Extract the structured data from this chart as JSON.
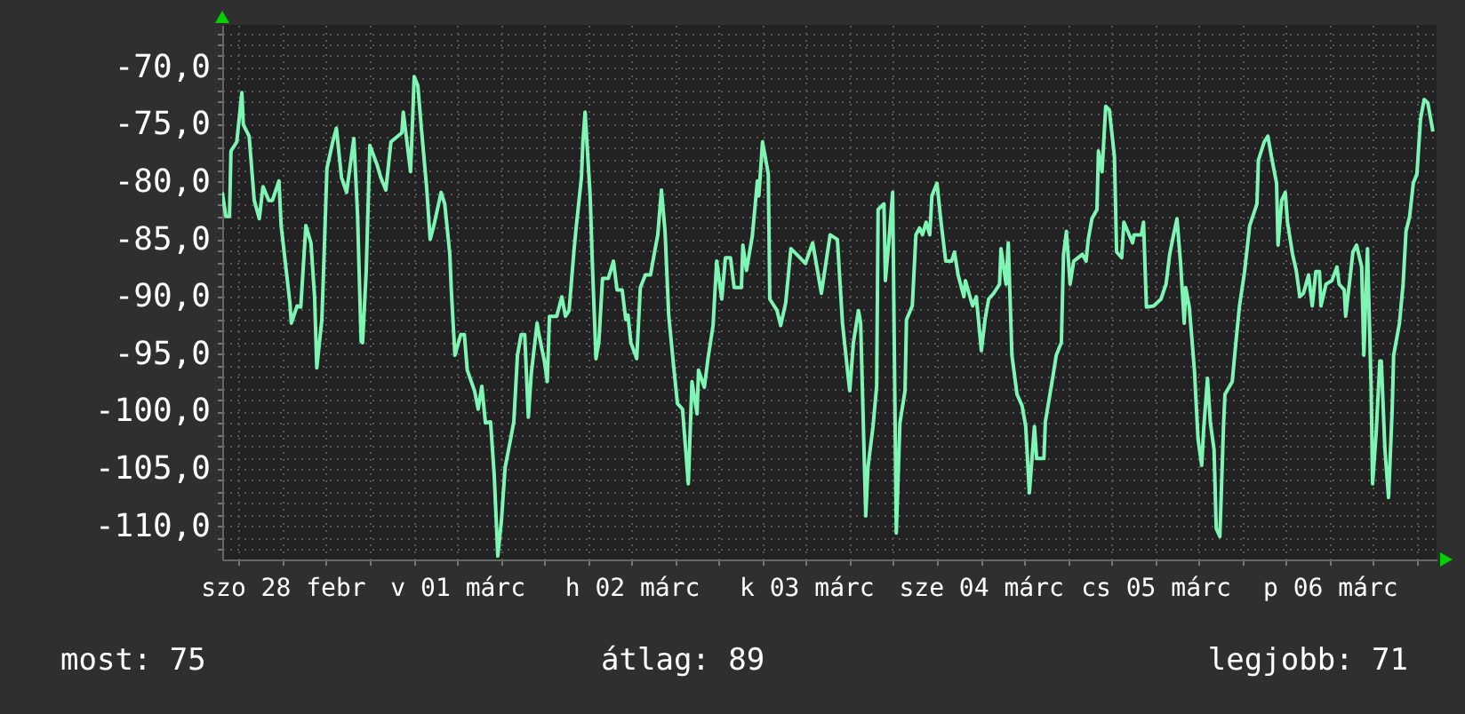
{
  "chart_data": {
    "type": "line",
    "x": [
      "--02-28T03:42",
      "--02-28T04:12",
      "--02-28T04:42",
      "--02-28T04:54",
      "--02-28T05:42",
      "--02-28T06:24",
      "--02-28T06:36",
      "--02-28T07:24",
      "--02-28T08:06",
      "--02-28T08:48",
      "--02-28T09:18",
      "--02-28T10:06",
      "--02-28T10:36",
      "--02-28T11:30",
      "--02-28T11:48",
      "--02-28T13:00",
      "--02-28T13:12",
      "--02-28T14:00",
      "--02-28T14:30",
      "--02-28T15:12",
      "--02-28T15:54",
      "--02-28T16:24",
      "--02-28T16:42",
      "--02-28T17:24",
      "--02-28T17:36",
      "--02-28T18:06",
      "--02-28T18:54",
      "--02-28T19:24",
      "--02-28T20:06",
      "--02-28T20:48",
      "--02-28T21:48",
      "--02-28T22:18",
      "--02-28T22:48",
      "--02-28T23:00",
      "--02-28T23:30",
      "--03-01T00:00",
      "--03-01T01:00",
      "--03-01T01:30",
      "--03-01T02:12",
      "--03-01T02:54",
      "--03-01T04:24",
      "--03-01T04:36",
      "--03-01T05:36",
      "--03-01T05:54",
      "--03-01T06:06",
      "--03-01T06:36",
      "--03-01T07:06",
      "--03-01T07:48",
      "--03-01T08:18",
      "--03-01T08:48",
      "--03-01T09:48",
      "--03-01T10:18",
      "--03-01T11:00",
      "--03-01T11:12",
      "--03-01T11:42",
      "--03-01T12:30",
      "--03-01T13:00",
      "--03-01T13:24",
      "--03-01T14:24",
      "--03-01T14:54",
      "--03-01T15:24",
      "--03-01T15:54",
      "--03-01T16:36",
      "--03-01T17:06",
      "--03-01T17:36",
      "--03-01T18:06",
      "--03-01T18:36",
      "--03-01T19:18",
      "--03-01T19:48",
      "--03-01T20:18",
      "--03-01T20:48",
      "--03-01T21:18",
      "--03-01T21:48",
      "--03-01T22:12",
      "--03-01T23:00",
      "--03-01T23:12",
      "--03-02T00:00",
      "--03-02T00:24",
      "--03-02T00:42",
      "--03-02T01:42",
      "--03-02T02:24",
      "--03-02T02:54",
      "--03-02T03:24",
      "--03-02T04:06",
      "--03-02T04:24",
      "--03-02T05:06",
      "--03-02T05:18",
      "--03-02T05:36",
      "--03-02T06:18",
      "--03-02T06:36",
      "--03-02T07:06",
      "--03-02T07:30",
      "--03-02T08:00",
      "--03-02T08:48",
      "--03-02T09:30",
      "--03-02T10:00",
      "--03-02T10:42",
      "--03-02T11:12",
      "--03-02T11:30",
      "--03-02T11:54",
      "--03-02T12:42",
      "--03-02T13:12",
      "--03-02T13:54",
      "--03-02T14:36",
      "--03-02T15:06",
      "--03-02T15:36",
      "--03-02T16:06",
      "--03-02T16:36",
      "--03-02T17:06",
      "--03-02T17:48",
      "--03-02T18:18",
      "--03-02T19:00",
      "--03-02T19:48",
      "--03-02T20:18",
      "--03-02T21:00",
      "--03-02T21:12",
      "--03-02T22:00",
      "--03-02T22:30",
      "--03-02T23:12",
      "--03-02T23:42",
      "--03-03T00:24",
      "--03-03T00:54",
      "--03-03T01:36",
      "--03-03T02:06",
      "--03-03T03:06",
      "--03-03T03:18",
      "--03-03T03:48",
      "--03-03T04:36",
      "--03-03T05:18",
      "--03-03T05:30",
      "--03-03T06:00",
      "--03-03T06:48",
      "--03-03T07:00",
      "--03-03T08:00",
      "--03-03T08:30",
      "--03-03T09:12",
      "--03-03T09:54",
      "--03-03T10:42",
      "--03-03T11:54",
      "--03-03T12:54",
      "--03-03T14:06",
      "--03-03T15:18",
      "--03-03T16:18",
      "--03-03T17:00",
      "--03-03T17:48",
      "--03-03T18:00",
      "--03-03T18:30",
      "--03-03T19:12",
      "--03-03T19:30",
      "--03-03T20:12",
      "--03-03T20:30",
      "--03-03T21:12",
      "--03-03T21:42",
      "--03-03T21:54",
      "--03-03T22:42",
      "--03-03T22:54",
      "--03-03T23:24",
      "--03-03T23:54",
      "--03-04T00:24",
      "--03-04T00:54",
      "--03-04T01:36",
      "--03-04T01:48",
      "--03-04T02:36",
      "--03-04T03:06",
      "--03-04T03:36",
      "--03-04T04:00",
      "--03-04T04:30",
      "--03-04T05:00",
      "--03-04T05:18",
      "--03-04T06:00",
      "--03-04T06:30",
      "--03-04T07:12",
      "--03-04T08:00",
      "--03-04T08:24",
      "--03-04T08:54",
      "--03-04T09:42",
      "--03-04T09:54",
      "--03-04T10:54",
      "--03-04T11:24",
      "--03-04T12:06",
      "--03-04T12:36",
      "--03-04T13:06",
      "--03-04T13:48",
      "--03-04T14:36",
      "--03-04T14:48",
      "--03-04T15:30",
      "--03-04T15:48",
      "--03-04T16:18",
      "--03-04T17:00",
      "--03-04T17:42",
      "--03-04T18:12",
      "--03-04T18:42",
      "--03-04T19:24",
      "--03-04T19:42",
      "--03-04T20:42",
      "--03-04T20:54",
      "--03-04T21:54",
      "--03-04T22:24",
      "--03-04T23:06",
      "--03-04T23:24",
      "--03-04T23:48",
      "--03-05T00:18",
      "--03-05T00:48",
      "--03-05T02:00",
      "--03-05T02:30",
      "--03-05T02:48",
      "--03-05T03:18",
      "--03-05T04:00",
      "--03-05T04:12",
      "--03-05T04:42",
      "--03-05T05:12",
      "--03-05T05:42",
      "--03-05T06:24",
      "--03-05T06:42",
      "--03-05T07:24",
      "--03-05T07:42",
      "--03-05T08:54",
      "--03-05T09:06",
      "--03-05T10:06",
      "--03-05T10:24",
      "--03-05T10:48",
      "--03-05T11:48",
      "--03-05T12:48",
      "--03-05T13:30",
      "--03-05T14:00",
      "--03-05T14:30",
      "--03-05T15:00",
      "--03-05T15:30",
      "--03-05T16:00",
      "--03-05T16:12",
      "--03-05T16:42",
      "--03-05T17:24",
      "--03-05T17:54",
      "--03-05T18:24",
      "--03-05T18:42",
      "--03-05T19:12",
      "--03-05T19:36",
      "--03-05T20:06",
      "--03-05T20:24",
      "--03-05T20:54",
      "--03-05T21:24",
      "--03-05T21:36",
      "--03-05T22:36",
      "--03-05T23:06",
      "--03-05T23:36",
      "--03-06T00:18",
      "--03-06T01:00",
      "--03-06T02:00",
      "--03-06T02:12",
      "--03-06T03:00",
      "--03-06T03:30",
      "--03-06T04:00",
      "--03-06T04:42",
      "--03-06T04:54",
      "--03-06T05:24",
      "--03-06T05:54",
      "--03-06T06:12",
      "--03-06T06:54",
      "--03-06T07:24",
      "--03-06T07:54",
      "--03-06T08:24",
      "--03-06T09:06",
      "--03-06T09:36",
      "--03-06T10:06",
      "--03-06T10:36",
      "--03-06T10:48",
      "--03-06T11:30",
      "--03-06T12:18",
      "--03-06T13:00",
      "--03-06T13:18",
      "--03-06T14:00",
      "--03-06T14:12",
      "--03-06T14:42",
      "--03-06T15:12",
      "--03-06T15:42",
      "--03-06T16:24",
      "--03-06T16:42",
      "--03-06T17:12",
      "--03-06T17:42",
      "--03-06T17:54",
      "--03-06T18:24",
      "--03-06T18:54",
      "--03-06T19:06",
      "--03-06T19:36",
      "--03-06T20:06",
      "--03-06T20:36",
      "--03-06T20:48",
      "--03-06T21:36",
      "--03-06T22:06",
      "--03-06T22:30",
      "--03-06T23:00",
      "--03-06T23:30",
      "--03-07T00:00",
      "--03-07T00:30",
      "--03-07T01:00",
      "--03-07T01:30",
      "--03-07T02:12"
    ],
    "series": [
      {
        "color": "#7ff5b5",
        "values": [
          -80.9,
          -83.0,
          -83.0,
          -77.3,
          -76.5,
          -72.2,
          -75.0,
          -76.0,
          -81.6,
          -83.2,
          -80.4,
          -81.6,
          -81.6,
          -79.9,
          -83.8,
          -90.5,
          -92.3,
          -90.8,
          -90.9,
          -83.8,
          -85.3,
          -90.0,
          -96.2,
          -92.0,
          -88.4,
          -78.8,
          -76.5,
          -75.3,
          -79.6,
          -80.9,
          -76.2,
          -82.7,
          -93.9,
          -94.0,
          -87.8,
          -76.8,
          -78.5,
          -79.6,
          -80.7,
          -76.5,
          -75.7,
          -73.9,
          -79.1,
          -74.2,
          -70.8,
          -71.6,
          -75.4,
          -80.4,
          -85.0,
          -83.8,
          -80.9,
          -81.9,
          -86.3,
          -89.4,
          -95.1,
          -93.3,
          -93.3,
          -96.4,
          -98.2,
          -99.8,
          -97.8,
          -101.0,
          -100.9,
          -105.5,
          -112.6,
          -109.5,
          -104.9,
          -102.6,
          -100.9,
          -95.1,
          -93.3,
          -93.3,
          -100.5,
          -96.7,
          -92.3,
          -93.1,
          -95.6,
          -97.4,
          -91.7,
          -91.7,
          -90.0,
          -91.7,
          -91.2,
          -85.8,
          -83.8,
          -79.6,
          -76.5,
          -73.9,
          -81.2,
          -87.1,
          -95.4,
          -93.9,
          -88.4,
          -88.4,
          -86.9,
          -89.4,
          -89.4,
          -92.0,
          -91.6,
          -94.0,
          -95.4,
          -89.2,
          -88.1,
          -88.1,
          -86.3,
          -84.6,
          -80.7,
          -84.3,
          -91.6,
          -96.2,
          -99.3,
          -99.8,
          -106.3,
          -97.4,
          -100.2,
          -96.4,
          -97.9,
          -95.4,
          -92.5,
          -86.9,
          -90.2,
          -86.6,
          -86.6,
          -89.2,
          -89.2,
          -85.5,
          -87.7,
          -84.7,
          -79.9,
          -81.2,
          -76.5,
          -79.3,
          -90.2,
          -91.2,
          -92.5,
          -90.5,
          -85.8,
          -86.3,
          -87.1,
          -85.3,
          -89.7,
          -84.6,
          -85.0,
          -92.3,
          -97.1,
          -98.2,
          -94.0,
          -91.2,
          -92.3,
          -109.1,
          -104.9,
          -101.3,
          -97.8,
          -82.4,
          -81.9,
          -88.6,
          -85.0,
          -80.9,
          -110.6,
          -101.0,
          -98.2,
          -92.0,
          -90.8,
          -84.6,
          -84.0,
          -84.6,
          -83.5,
          -84.6,
          -81.2,
          -80.1,
          -83.2,
          -86.9,
          -86.9,
          -86.1,
          -88.1,
          -90.0,
          -88.6,
          -90.8,
          -90.0,
          -94.7,
          -92.0,
          -90.2,
          -89.7,
          -88.9,
          -85.8,
          -88.9,
          -85.3,
          -95.1,
          -98.5,
          -99.5,
          -101.3,
          -107.1,
          -101.3,
          -104.1,
          -104.1,
          -100.9,
          -97.1,
          -95.1,
          -94.0,
          -86.3,
          -84.3,
          -88.9,
          -86.9,
          -86.3,
          -86.9,
          -85.0,
          -83.2,
          -82.4,
          -77.3,
          -79.1,
          -73.4,
          -73.7,
          -77.8,
          -86.1,
          -86.6,
          -83.5,
          -85.3,
          -84.6,
          -84.6,
          -83.5,
          -90.9,
          -90.8,
          -90.2,
          -88.9,
          -86.3,
          -84.7,
          -83.2,
          -87.1,
          -92.3,
          -89.2,
          -90.9,
          -96.4,
          -102.4,
          -104.7,
          -101.3,
          -97.1,
          -101.0,
          -103.3,
          -110.2,
          -110.9,
          -101.3,
          -98.5,
          -97.4,
          -94.0,
          -90.8,
          -87.8,
          -83.8,
          -81.9,
          -78.1,
          -76.5,
          -76.0,
          -77.8,
          -80.1,
          -85.5,
          -81.6,
          -80.9,
          -83.5,
          -86.3,
          -87.7,
          -90.0,
          -89.7,
          -88.1,
          -90.8,
          -87.8,
          -87.8,
          -90.8,
          -88.9,
          -88.6,
          -87.4,
          -88.9,
          -89.4,
          -91.7,
          -88.9,
          -86.1,
          -85.5,
          -87.4,
          -95.1,
          -85.8,
          -97.8,
          -106.3,
          -101.8,
          -95.6,
          -95.6,
          -103.3,
          -107.5,
          -99.8,
          -95.1,
          -92.3,
          -88.9,
          -84.3,
          -83.0,
          -80.1,
          -79.3,
          -74.5,
          -72.8,
          -73.1,
          -75.6
        ]
      }
    ],
    "xlim": [
      "--02-28T03:42",
      "--03-07T02:42"
    ],
    "xticks": [
      {
        "value": "--02-28T06:00",
        "label": null
      },
      {
        "value": "--02-28T12:00",
        "label": "szo 28 febr"
      },
      {
        "value": "--02-28T18:00",
        "label": null
      },
      {
        "value": "--03-01T00:00",
        "label": null
      },
      {
        "value": "--03-01T06:00",
        "label": null
      },
      {
        "value": "--03-01T12:00",
        "label": "v 01 márc"
      },
      {
        "value": "--03-01T18:00",
        "label": null
      },
      {
        "value": "--03-02T00:00",
        "label": null
      },
      {
        "value": "--03-02T06:00",
        "label": null
      },
      {
        "value": "--03-02T12:00",
        "label": "h 02 márc"
      },
      {
        "value": "--03-02T18:00",
        "label": null
      },
      {
        "value": "--03-03T00:00",
        "label": null
      },
      {
        "value": "--03-03T06:00",
        "label": null
      },
      {
        "value": "--03-03T12:00",
        "label": "k 03 márc"
      },
      {
        "value": "--03-03T18:00",
        "label": null
      },
      {
        "value": "--03-04T00:00",
        "label": null
      },
      {
        "value": "--03-04T06:00",
        "label": null
      },
      {
        "value": "--03-04T12:00",
        "label": "sze 04 márc"
      },
      {
        "value": "--03-04T18:00",
        "label": null
      },
      {
        "value": "--03-05T00:00",
        "label": null
      },
      {
        "value": "--03-05T06:00",
        "label": null
      },
      {
        "value": "--03-05T12:00",
        "label": "cs 05 márc"
      },
      {
        "value": "--03-05T18:00",
        "label": null
      },
      {
        "value": "--03-06T00:00",
        "label": null
      },
      {
        "value": "--03-06T06:00",
        "label": null
      },
      {
        "value": "--03-06T12:00",
        "label": "p 06 márc"
      },
      {
        "value": "--03-06T18:00",
        "label": null
      },
      {
        "value": "--03-07T00:00",
        "label": null
      }
    ],
    "ylim": [
      -112.9,
      -66.3
    ],
    "yticks": [
      {
        "value": -112,
        "label": null
      },
      {
        "value": -111,
        "label": null
      },
      {
        "value": -110,
        "label": "-110,0"
      },
      {
        "value": -109,
        "label": null
      },
      {
        "value": -108,
        "label": null
      },
      {
        "value": -107,
        "label": null
      },
      {
        "value": -106,
        "label": null
      },
      {
        "value": -105,
        "label": "-105,0"
      },
      {
        "value": -104,
        "label": null
      },
      {
        "value": -103,
        "label": null
      },
      {
        "value": -102,
        "label": null
      },
      {
        "value": -101,
        "label": null
      },
      {
        "value": -100,
        "label": "-100,0"
      },
      {
        "value": -99,
        "label": null
      },
      {
        "value": -98,
        "label": null
      },
      {
        "value": -97,
        "label": null
      },
      {
        "value": -96,
        "label": null
      },
      {
        "value": -95,
        "label": "-95,0"
      },
      {
        "value": -94,
        "label": null
      },
      {
        "value": -93,
        "label": null
      },
      {
        "value": -92,
        "label": null
      },
      {
        "value": -91,
        "label": null
      },
      {
        "value": -90,
        "label": "-90,0"
      },
      {
        "value": -89,
        "label": null
      },
      {
        "value": -88,
        "label": null
      },
      {
        "value": -87,
        "label": null
      },
      {
        "value": -86,
        "label": null
      },
      {
        "value": -85,
        "label": "-85,0"
      },
      {
        "value": -84,
        "label": null
      },
      {
        "value": -83,
        "label": null
      },
      {
        "value": -82,
        "label": null
      },
      {
        "value": -81,
        "label": null
      },
      {
        "value": -80,
        "label": "-80,0"
      },
      {
        "value": -79,
        "label": null
      },
      {
        "value": -78,
        "label": null
      },
      {
        "value": -77,
        "label": null
      },
      {
        "value": -76,
        "label": null
      },
      {
        "value": -75,
        "label": "-75,0"
      },
      {
        "value": -74,
        "label": null
      },
      {
        "value": -73,
        "label": null
      },
      {
        "value": -72,
        "label": null
      },
      {
        "value": -71,
        "label": null
      },
      {
        "value": -70,
        "label": "-70,0"
      },
      {
        "value": -69,
        "label": null
      },
      {
        "value": -68,
        "label": null
      },
      {
        "value": -67,
        "label": null
      }
    ],
    "grid": true,
    "annotations": [
      "most: 75",
      "átlag: 89",
      "legjobb: 71"
    ]
  }
}
